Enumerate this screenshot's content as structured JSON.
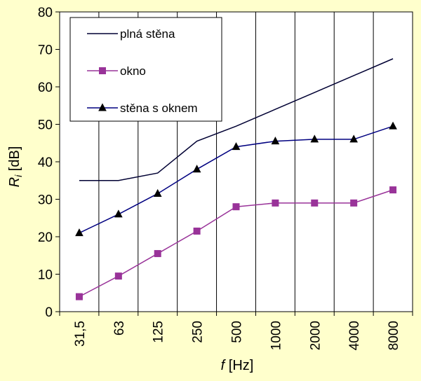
{
  "chart_data": {
    "type": "line",
    "categories": [
      "31,5",
      "63",
      "125",
      "250",
      "500",
      "1000",
      "2000",
      "4000",
      "8000"
    ],
    "series": [
      {
        "name": "plná stěna",
        "values": [
          35,
          35,
          37,
          45.5,
          49.5,
          54,
          58.5,
          63,
          67.5
        ],
        "color": "#000033",
        "marker": "none"
      },
      {
        "name": "okno",
        "values": [
          4,
          9.5,
          15.5,
          21.5,
          28,
          29,
          29,
          29,
          32.5
        ],
        "color": "#993399",
        "marker": "square"
      },
      {
        "name": "stěna s oknem",
        "values": [
          21,
          26,
          31.5,
          38,
          44,
          45.5,
          46,
          46,
          49.5
        ],
        "color": "#000080",
        "marker": "triangle"
      }
    ],
    "ylim": [
      0,
      80
    ],
    "yticks": [
      "0",
      "10",
      "20",
      "30",
      "40",
      "50",
      "60",
      "70",
      "80"
    ],
    "ylabel": {
      "symbol": "R",
      "subscript": "i",
      "unit": " [dB]"
    },
    "xlabel": {
      "symbol": "f",
      "unit": " [Hz]"
    },
    "grid": "vertical",
    "legend": "top-left",
    "background": "#ffffcc",
    "plot_background": "#ffffff"
  }
}
